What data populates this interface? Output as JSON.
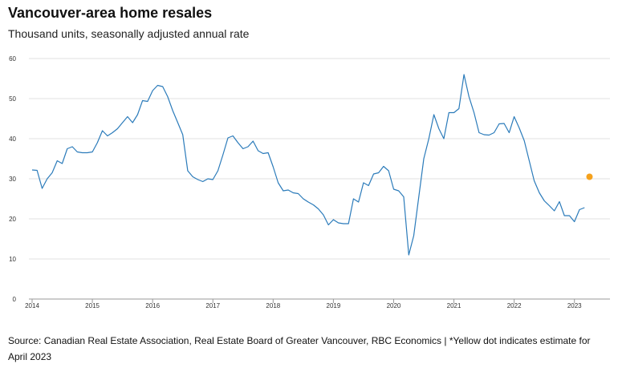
{
  "title": "Vancouver-area home resales",
  "subtitle": "Thousand units, seasonally adjusted annual rate",
  "source": "Source: Canadian Real Estate Association, Real Estate Board of Greater Vancouver, RBC Economics | *Yellow dot indicates estimate for April 2023",
  "colors": {
    "line": "#2b7bba",
    "estimate": "#f5a11c",
    "grid": "#e2e2e2",
    "axis": "#999999"
  },
  "chart_data": {
    "type": "line",
    "xlabel": "",
    "ylabel": "",
    "ylim": [
      0,
      60
    ],
    "y_ticks": [
      0,
      10,
      20,
      30,
      40,
      50,
      60
    ],
    "x_ticks": [
      "2014",
      "2015",
      "2016",
      "2017",
      "2018",
      "2019",
      "2020",
      "2021",
      "2022",
      "2023"
    ],
    "xlim": [
      2014.0,
      2023.35
    ],
    "grid": true,
    "series": [
      {
        "x": [
          2014.0,
          2014.083,
          2014.167,
          2014.25,
          2014.333,
          2014.417,
          2014.5,
          2014.583,
          2014.667,
          2014.75,
          2014.833,
          2014.917,
          2015.0,
          2015.083,
          2015.167,
          2015.25,
          2015.333,
          2015.417,
          2015.5,
          2015.583,
          2015.667,
          2015.75,
          2015.833,
          2015.917,
          2016.0,
          2016.083,
          2016.167,
          2016.25,
          2016.333,
          2016.417,
          2016.5,
          2016.583,
          2016.667,
          2016.75,
          2016.833,
          2016.917,
          2017.0,
          2017.083,
          2017.167,
          2017.25,
          2017.333,
          2017.417,
          2017.5,
          2017.583,
          2017.667,
          2017.75,
          2017.833,
          2017.917,
          2018.0,
          2018.083,
          2018.167,
          2018.25,
          2018.333,
          2018.417,
          2018.5,
          2018.583,
          2018.667,
          2018.75,
          2018.833,
          2018.917,
          2019.0,
          2019.083,
          2019.167,
          2019.25,
          2019.333,
          2019.417,
          2019.5,
          2019.583,
          2019.667,
          2019.75,
          2019.833,
          2019.917,
          2020.0,
          2020.083,
          2020.167,
          2020.25,
          2020.333,
          2020.417,
          2020.5,
          2020.583,
          2020.667,
          2020.75,
          2020.833,
          2020.917,
          2021.0,
          2021.083,
          2021.167,
          2021.25,
          2021.333,
          2021.417,
          2021.5,
          2021.583,
          2021.667,
          2021.75,
          2021.833,
          2021.917,
          2022.0,
          2022.083,
          2022.167,
          2022.25,
          2022.333,
          2022.417,
          2022.5,
          2022.583,
          2022.667,
          2022.75,
          2022.833,
          2022.917,
          2023.0,
          2023.083,
          2023.167
        ],
        "values": [
          32.2,
          32.1,
          27.6,
          30.0,
          31.5,
          34.5,
          33.8,
          37.5,
          38.0,
          36.7,
          36.5,
          36.5,
          36.7,
          39.0,
          42.0,
          40.7,
          41.5,
          42.5,
          44.0,
          45.5,
          44.0,
          46.0,
          49.5,
          49.3,
          52.0,
          53.3,
          53.0,
          50.5,
          47.0,
          44.0,
          41.0,
          32.0,
          30.5,
          29.8,
          29.3,
          30.0,
          29.8,
          32.0,
          36.0,
          40.2,
          40.7,
          39.0,
          37.5,
          38.0,
          39.4,
          37.0,
          36.3,
          36.5,
          33.0,
          29.0,
          27.0,
          27.2,
          26.5,
          26.3,
          25.0,
          24.2,
          23.5,
          22.5,
          21.0,
          18.5,
          19.8,
          19.0,
          18.8,
          18.8,
          25.0,
          24.2,
          29.0,
          28.3,
          31.2,
          31.5,
          33.1,
          32.0,
          27.4,
          27.0,
          25.5,
          11.0,
          15.8,
          25.5,
          35.0,
          40.0,
          46.0,
          42.5,
          40.0,
          46.5,
          46.5,
          47.5,
          56.0,
          50.5,
          46.5,
          41.5,
          41.0,
          40.9,
          41.5,
          43.7,
          43.8,
          41.5,
          45.5,
          42.7,
          39.5,
          34.5,
          29.5,
          26.5,
          24.5,
          23.3,
          22.0,
          24.3,
          20.8,
          20.8,
          19.3,
          22.3,
          22.8
        ]
      }
    ],
    "estimate": {
      "x": 2023.25,
      "value": 30.5
    }
  }
}
